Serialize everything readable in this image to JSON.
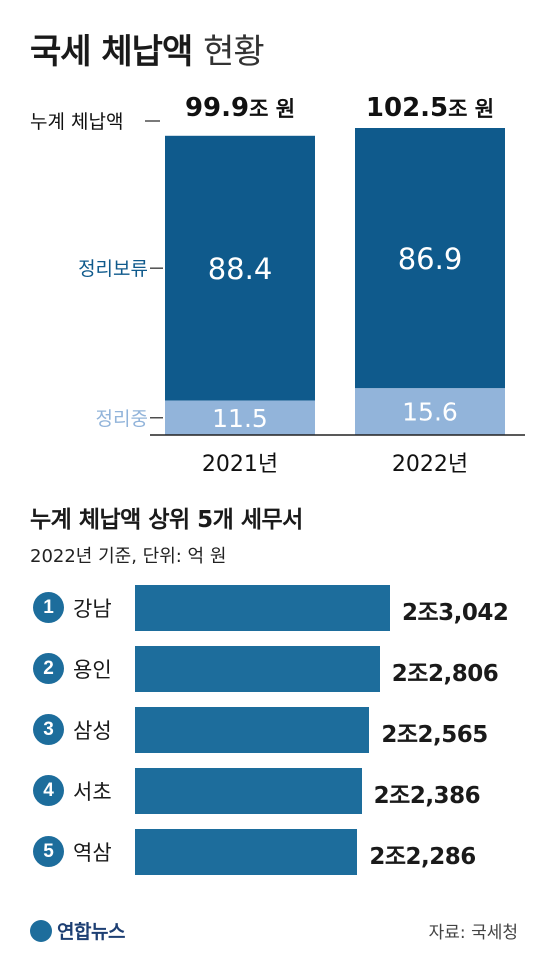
{
  "title": {
    "main": "국세 체납액",
    "sub": "현황"
  },
  "chart_data": [
    {
      "type": "bar",
      "stacked": true,
      "categories": [
        "2021년",
        "2022년"
      ],
      "series": [
        {
          "name": "정리보류",
          "values": [
            88.4,
            86.9
          ],
          "color": "#0f5a8c"
        },
        {
          "name": "정리중",
          "values": [
            11.5,
            15.6
          ],
          "color": "#92b4da"
        }
      ],
      "totals": [
        99.9,
        102.5
      ],
      "total_labels": [
        "99.9",
        "102.5"
      ],
      "total_unit": "조 원",
      "total_label": "누계 체납액",
      "value_labels": [
        [
          "88.4",
          "86.9"
        ],
        [
          "11.5",
          "15.6"
        ]
      ],
      "ylim": [
        0,
        102.5
      ],
      "grid": false
    },
    {
      "type": "bar",
      "orientation": "horizontal",
      "title": "누계 체납액 상위 5개 세무서",
      "subtitle": "2022년 기준, 단위: 억 원",
      "ranks": [
        "1",
        "2",
        "3",
        "4",
        "5"
      ],
      "categories": [
        "강남",
        "용인",
        "삼성",
        "서초",
        "역삼"
      ],
      "values": [
        23042,
        22806,
        22565,
        22386,
        22286
      ],
      "value_labels": [
        "2조3,042",
        "2조2,806",
        "2조2,565",
        "2조2,386",
        "2조2,286"
      ],
      "color": "#1d6d9c"
    }
  ],
  "footer": {
    "logo": "연합뉴스",
    "source": "자료: 국세청"
  }
}
